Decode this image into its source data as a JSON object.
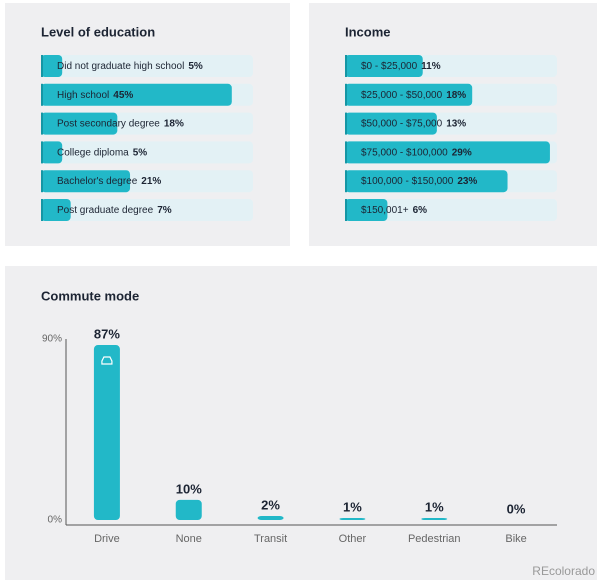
{
  "chart_data": [
    {
      "type": "hbar",
      "title": "Level of education",
      "categories": [
        "Did not graduate high school",
        "High school",
        "Post secondary degree",
        "College diploma",
        "Bachelor's degree",
        "Post graduate degree"
      ],
      "values": [
        5,
        45,
        18,
        5,
        21,
        7
      ],
      "value_labels": [
        "5%",
        "45%",
        "18%",
        "5%",
        "21%",
        "7%"
      ],
      "xlim": [
        0,
        50
      ],
      "color": "#22b8c8"
    },
    {
      "type": "hbar",
      "title": "Income",
      "categories": [
        "$0 - $25,000",
        "$25,000 - $50,000",
        "$50,000 - $75,000",
        "$75,000 - $100,000",
        "$100,000 - $150,000",
        "$150,001+"
      ],
      "values": [
        11,
        18,
        13,
        29,
        23,
        6
      ],
      "value_labels": [
        "11%",
        "18%",
        "13%",
        "29%",
        "23%",
        "6%"
      ],
      "xlim": [
        0,
        30
      ],
      "color": "#22b8c8"
    },
    {
      "type": "bar",
      "title": "Commute mode",
      "categories": [
        "Drive",
        "None",
        "Transit",
        "Other",
        "Pedestrian",
        "Bike"
      ],
      "values": [
        87,
        10,
        2,
        1,
        1,
        0
      ],
      "value_labels": [
        "87%",
        "10%",
        "2%",
        "1%",
        "1%",
        "0%"
      ],
      "ylim": [
        0,
        90
      ],
      "yticks": [
        {
          "value": 90,
          "label": "90%"
        },
        {
          "value": 0,
          "label": "0%"
        }
      ],
      "color": "#22b8c8"
    }
  ],
  "footer": "REcolorado"
}
